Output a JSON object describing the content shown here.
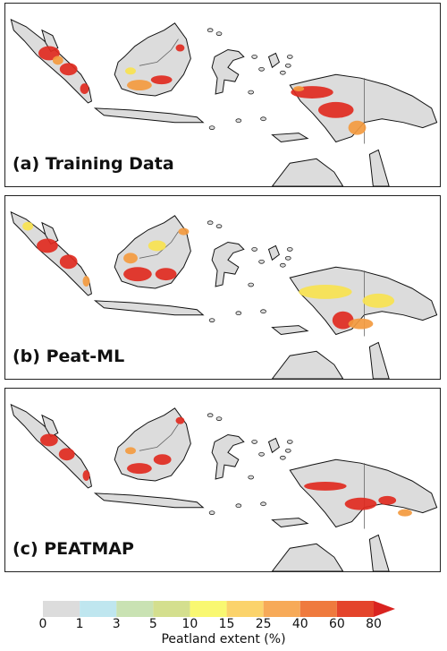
{
  "panels": [
    {
      "label": "(a) Training Data",
      "variant": "training"
    },
    {
      "label": "(b) Peat-ML",
      "variant": "peatml"
    },
    {
      "label": "(c) PEATMAP",
      "variant": "peatmap"
    }
  ],
  "colorbar": {
    "title": "Peatland extent (%)",
    "ticks": [
      "0",
      "1",
      "3",
      "5",
      "10",
      "15",
      "25",
      "40",
      "60",
      "80"
    ],
    "colors": [
      "#dcdcdc",
      "#bfe6ef",
      "#c9e2b3",
      "#d4df8e",
      "#f9f871",
      "#fbd36b",
      "#f7aa58",
      "#ef7a3e",
      "#e4442b",
      "#d9231f"
    ]
  },
  "map_colors": {
    "land": "#dcdcdc",
    "coast": "#111111",
    "border": "#666666",
    "peat_high": "#e02a1f",
    "peat_mid": "#f39a3f",
    "peat_low": "#f7e24f"
  }
}
